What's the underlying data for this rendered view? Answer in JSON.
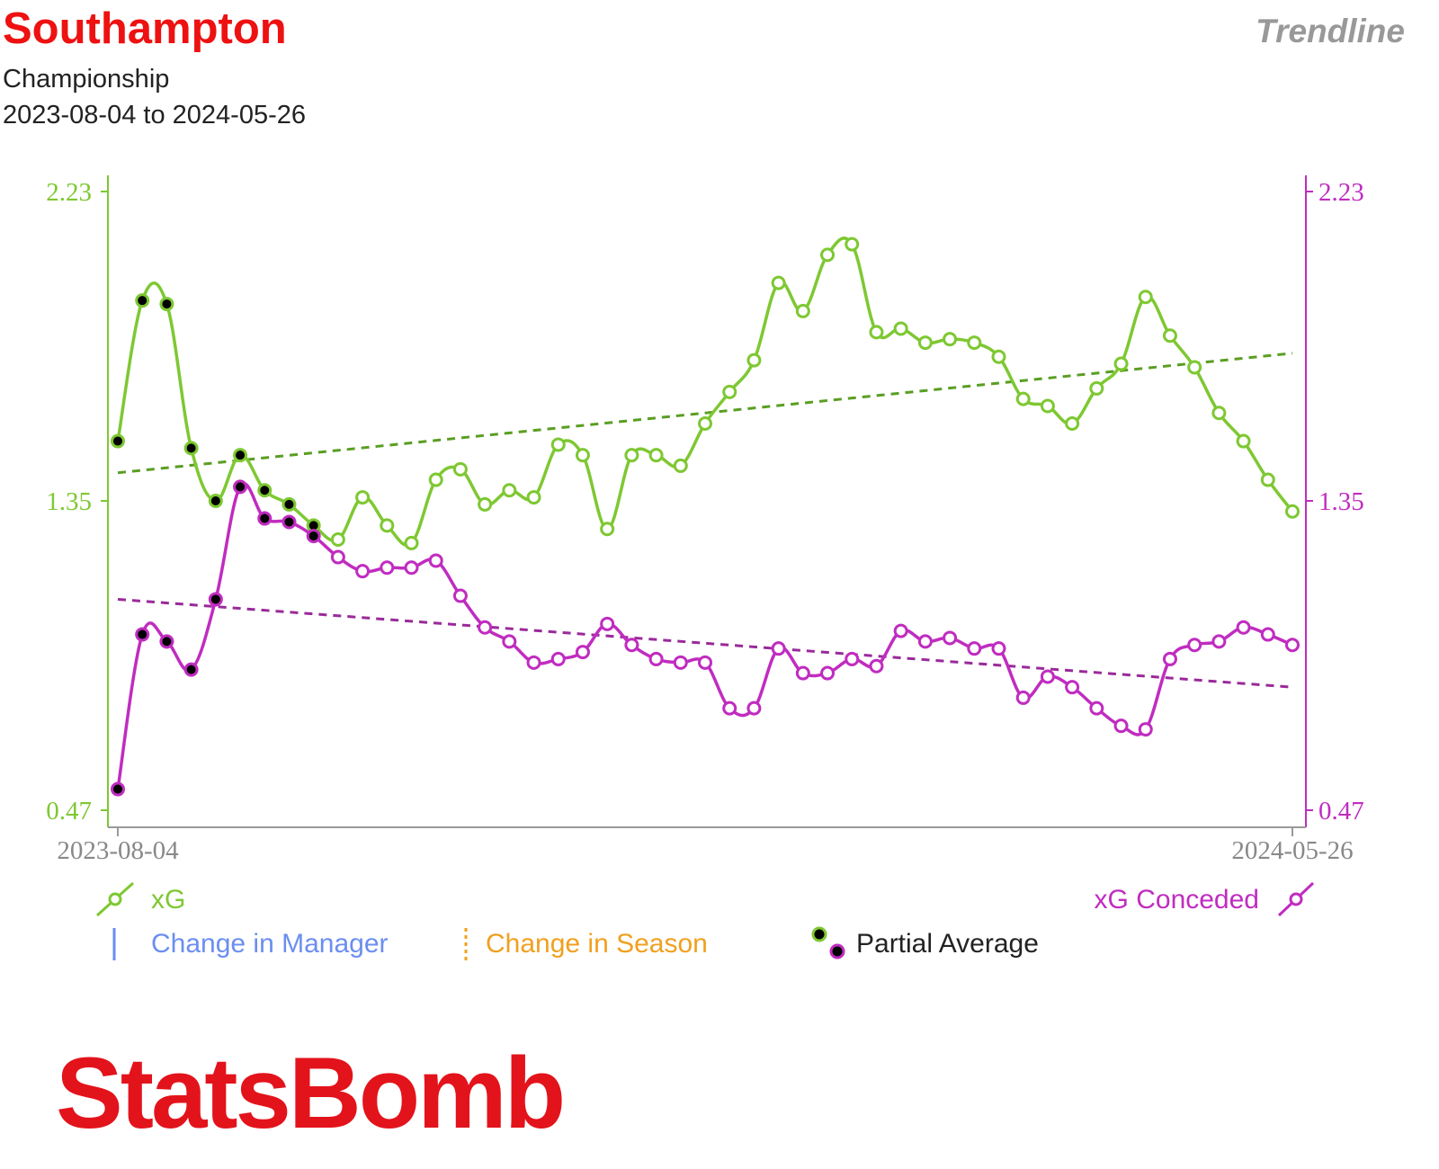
{
  "header": {
    "team": "Southampton",
    "competition": "Championship",
    "date_range": "2023-08-04 to 2024-05-26",
    "chart_type": "Trendline"
  },
  "colors": {
    "team": "#ee1111",
    "xg": "#7ec832",
    "xg_trend": "#5a9e22",
    "xg_conceded": "#c02cc0",
    "xg_conceded_trend": "#9a2a9a",
    "manager_change": "#6b8ef0",
    "season_change": "#f0a020",
    "partial_avg_dot": "#000000",
    "logo": "#e3131b"
  },
  "legend": {
    "xg": "xG",
    "xg_conceded": "xG Conceded",
    "manager_change": "Change in Manager",
    "season_change": "Change in Season",
    "partial_average": "Partial Average"
  },
  "logo": {
    "text": "StatsBomb"
  },
  "chart_data": {
    "type": "line",
    "y_ticks": [
      "2.23",
      "1.35",
      "0.47"
    ],
    "x_tick_labels": [
      "2023-08-04",
      "2024-05-26"
    ],
    "ylim": [
      0.47,
      2.23
    ],
    "grid": false,
    "num_matches": 49,
    "partial_average_count": 9,
    "series": [
      {
        "name": "xG",
        "axis": "left",
        "values": [
          1.52,
          1.92,
          1.91,
          1.5,
          1.35,
          1.48,
          1.38,
          1.34,
          1.28,
          1.24,
          1.36,
          1.28,
          1.23,
          1.41,
          1.44,
          1.34,
          1.38,
          1.36,
          1.51,
          1.48,
          1.27,
          1.48,
          1.48,
          1.45,
          1.57,
          1.66,
          1.75,
          1.97,
          1.89,
          2.05,
          2.08,
          1.83,
          1.84,
          1.8,
          1.81,
          1.8,
          1.76,
          1.64,
          1.62,
          1.57,
          1.67,
          1.74,
          1.93,
          1.82,
          1.73,
          1.6,
          1.52,
          1.41,
          1.32
        ],
        "trend": [
          1.43,
          1.77
        ]
      },
      {
        "name": "xG Conceded",
        "axis": "right",
        "values": [
          0.53,
          0.97,
          0.95,
          0.87,
          1.07,
          1.39,
          1.3,
          1.29,
          1.25,
          1.19,
          1.15,
          1.16,
          1.16,
          1.18,
          1.08,
          0.99,
          0.95,
          0.89,
          0.9,
          0.92,
          1.0,
          0.94,
          0.9,
          0.89,
          0.89,
          0.76,
          0.76,
          0.93,
          0.86,
          0.86,
          0.9,
          0.88,
          0.98,
          0.95,
          0.96,
          0.93,
          0.93,
          0.79,
          0.85,
          0.82,
          0.76,
          0.71,
          0.7,
          0.9,
          0.94,
          0.95,
          0.99,
          0.97,
          0.94
        ],
        "trend": [
          1.07,
          0.82
        ]
      }
    ]
  }
}
